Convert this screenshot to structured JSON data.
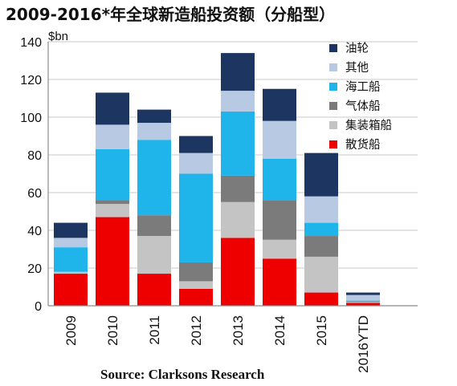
{
  "chart_data": {
    "type": "bar",
    "stacked": true,
    "title": "2009-2016*年全球新造船投资额（分船型）",
    "ylabel": "$bn",
    "xlabel": "",
    "ylim": [
      0,
      140
    ],
    "yticks": [
      0,
      20,
      40,
      60,
      80,
      100,
      120,
      140
    ],
    "grid": true,
    "legend_position": "right",
    "categories": [
      "2009",
      "2010",
      "2011",
      "2012",
      "2013",
      "2014",
      "2015",
      "2016YTD"
    ],
    "series": [
      {
        "name": "散货船",
        "color": "#ee0000",
        "values": [
          17,
          47,
          17,
          9,
          36,
          25,
          7,
          1.5
        ]
      },
      {
        "name": "集装箱船",
        "color": "#c4c4c4",
        "values": [
          1,
          7,
          20,
          4,
          19,
          10,
          19,
          0.5
        ]
      },
      {
        "name": "气体船",
        "color": "#7b7b7b",
        "values": [
          0,
          2,
          11,
          10,
          14,
          21,
          11,
          0.3
        ]
      },
      {
        "name": "海工船",
        "color": "#1fb4ea",
        "values": [
          13,
          27,
          40,
          47,
          34,
          22,
          7,
          0.4
        ]
      },
      {
        "name": "其他",
        "color": "#b8c9e4",
        "values": [
          5,
          13,
          9,
          11,
          11,
          20,
          14,
          3
        ]
      },
      {
        "name": "油轮",
        "color": "#1d3561",
        "values": [
          8,
          17,
          7,
          9,
          20,
          17,
          23,
          1.3
        ]
      }
    ],
    "legend_order": [
      "油轮",
      "其他",
      "海工船",
      "气体船",
      "集装箱船",
      "散货船"
    ],
    "annotations": [
      "Source: Clarksons Research"
    ]
  }
}
